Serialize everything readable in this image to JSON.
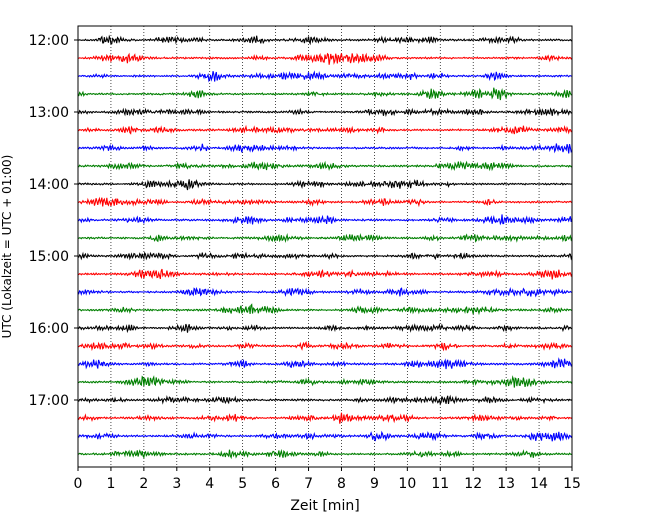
{
  "chart_data": {
    "type": "line",
    "title": "",
    "xlabel": "Zeit  [min]",
    "ylabel": "UTC (Lokalzeit = UTC + 01:00)",
    "xlim": [
      0,
      15
    ],
    "x_ticks": [
      "0",
      "1",
      "2",
      "3",
      "4",
      "5",
      "6",
      "7",
      "8",
      "9",
      "10",
      "11",
      "12",
      "13",
      "14",
      "15"
    ],
    "y_ticks": [
      {
        "label": "12:00",
        "trace": 0
      },
      {
        "label": "13:00",
        "trace": 4
      },
      {
        "label": "14:00",
        "trace": 8
      },
      {
        "label": "15:00",
        "trace": 12
      },
      {
        "label": "16:00",
        "trace": 16
      },
      {
        "label": "17:00",
        "trace": 20
      }
    ],
    "trace_start_times": [
      "12:00",
      "12:15",
      "12:30",
      "12:45",
      "13:00",
      "13:15",
      "13:30",
      "13:45",
      "14:00",
      "14:15",
      "14:30",
      "14:45",
      "15:00",
      "15:15",
      "15:30",
      "15:45",
      "16:00",
      "16:15",
      "16:30",
      "16:45",
      "17:00",
      "17:15",
      "17:30",
      "17:45"
    ],
    "trace_colors": [
      "#000000",
      "#ff0000",
      "#0000ff",
      "#007f00"
    ],
    "grid": "vertical-dotted"
  }
}
